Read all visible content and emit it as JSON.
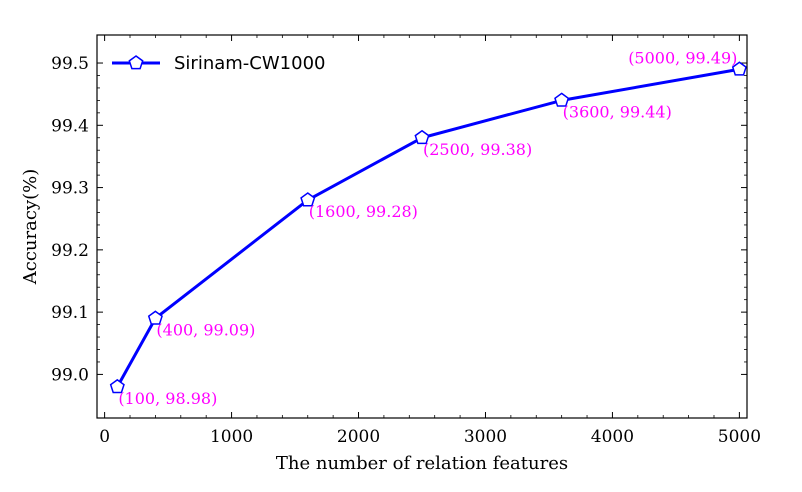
{
  "chart_data": {
    "type": "line",
    "title": "",
    "xlabel": "The number of relation features",
    "ylabel": "Accuracy(%)",
    "xlim": [
      -60,
      5060
    ],
    "ylim": [
      98.93,
      99.545
    ],
    "xticks": [
      0,
      1000,
      2000,
      3000,
      4000,
      5000
    ],
    "xtick_labels": [
      "0",
      "1000",
      "2000",
      "3000",
      "4000",
      "5000"
    ],
    "yticks": [
      99.0,
      99.1,
      99.2,
      99.3,
      99.4,
      99.5
    ],
    "ytick_labels": [
      "99.0",
      "99.1",
      "99.2",
      "99.3",
      "99.4",
      "99.5"
    ],
    "grid": false,
    "legend": {
      "position": "top-left"
    },
    "series": [
      {
        "name": "Sirinam-CW1000",
        "color": "#0000ff",
        "marker": "pentagon",
        "x": [
          100,
          400,
          1600,
          2500,
          3600,
          5000
        ],
        "y": [
          98.98,
          99.09,
          99.28,
          99.38,
          99.44,
          99.49
        ]
      }
    ],
    "annotations": [
      {
        "text": "(100, 98.98)",
        "x": 100,
        "y": 98.98,
        "color": "#ff00ff"
      },
      {
        "text": "(400, 99.09)",
        "x": 400,
        "y": 99.09,
        "color": "#ff00ff"
      },
      {
        "text": "(1600, 99.28)",
        "x": 1600,
        "y": 99.28,
        "color": "#ff00ff"
      },
      {
        "text": "(2500, 99.38)",
        "x": 2500,
        "y": 99.38,
        "color": "#ff00ff"
      },
      {
        "text": "(3600, 99.44)",
        "x": 3600,
        "y": 99.44,
        "color": "#ff00ff"
      },
      {
        "text": "(5000, 99.49)",
        "x": 5000,
        "y": 99.49,
        "color": "#ff00ff"
      }
    ]
  }
}
